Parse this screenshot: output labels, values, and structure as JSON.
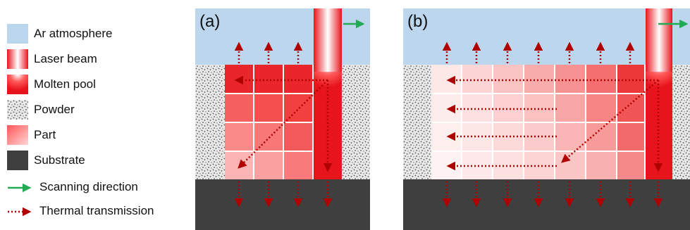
{
  "legend": {
    "items": [
      {
        "label": "Ar atmosphere",
        "icon": "atmosphere-swatch"
      },
      {
        "label": "Laser beam",
        "icon": "laser-beam-swatch"
      },
      {
        "label": "Molten pool",
        "icon": "molten-pool-swatch"
      },
      {
        "label": "Powder",
        "icon": "powder-swatch"
      },
      {
        "label": "Part",
        "icon": "part-swatch"
      },
      {
        "label": "Substrate",
        "icon": "substrate-swatch"
      },
      {
        "label": "Scanning direction",
        "icon": "green-arrow-icon"
      },
      {
        "label": "Thermal transmission",
        "icon": "dotted-red-arrow-icon"
      }
    ]
  },
  "panels": {
    "a": {
      "label": "(a)"
    },
    "b": {
      "label": "(b)"
    }
  },
  "colors": {
    "atmosphere": "#bcd6ee",
    "substrate": "#3f3f3f",
    "thermal_arrow": "#b00000",
    "scan_arrow": "#22aa55",
    "laser": "#e8141c"
  }
}
